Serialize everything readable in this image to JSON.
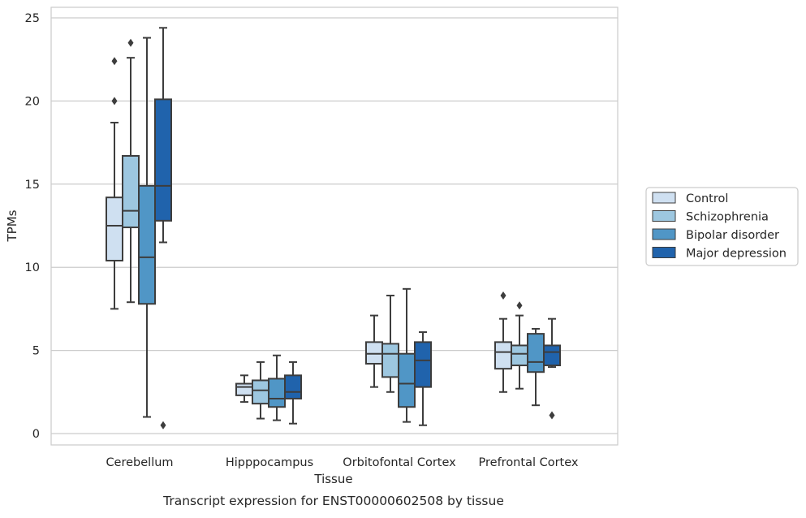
{
  "chart_data": {
    "type": "boxplot",
    "caption": "Transcript expression for ENST00000602508 by tissue",
    "xlabel": "Tissue",
    "ylabel": "TPMs",
    "ylim": [
      -0.7,
      25.7
    ],
    "yticks": [
      0,
      5,
      10,
      15,
      20,
      25
    ],
    "grid": "horizontal",
    "legend_position": "right",
    "categories": [
      "Cerebellum",
      "Hipppocampus",
      "Orbitofontal Cortex",
      "Prefrontal Cortex"
    ],
    "series": [
      {
        "name": "Control",
        "color": "#cfe0f1",
        "boxes": [
          {
            "whislo": 7.5,
            "q1": 10.4,
            "med": 12.5,
            "q3": 14.2,
            "whishi": 18.7,
            "fliers": [
              20.0,
              22.4
            ]
          },
          {
            "whislo": 1.9,
            "q1": 2.3,
            "med": 2.8,
            "q3": 3.0,
            "whishi": 3.5,
            "fliers": []
          },
          {
            "whislo": 2.8,
            "q1": 4.2,
            "med": 4.8,
            "q3": 5.5,
            "whishi": 7.1,
            "fliers": []
          },
          {
            "whislo": 2.5,
            "q1": 3.9,
            "med": 4.9,
            "q3": 5.5,
            "whishi": 6.9,
            "fliers": [
              8.3
            ]
          }
        ]
      },
      {
        "name": "Schizophrenia",
        "color": "#9dc7e0",
        "boxes": [
          {
            "whislo": 7.9,
            "q1": 12.4,
            "med": 13.4,
            "q3": 16.7,
            "whishi": 22.6,
            "fliers": [
              23.5
            ]
          },
          {
            "whislo": 0.9,
            "q1": 1.8,
            "med": 2.6,
            "q3": 3.2,
            "whishi": 4.3,
            "fliers": []
          },
          {
            "whislo": 2.5,
            "q1": 3.4,
            "med": 4.8,
            "q3": 5.4,
            "whishi": 8.3,
            "fliers": []
          },
          {
            "whislo": 2.7,
            "q1": 4.1,
            "med": 4.8,
            "q3": 5.3,
            "whishi": 7.1,
            "fliers": [
              7.7
            ]
          }
        ]
      },
      {
        "name": "Bipolar disorder",
        "color": "#5096c6",
        "boxes": [
          {
            "whislo": 1.0,
            "q1": 7.8,
            "med": 10.6,
            "q3": 14.9,
            "whishi": 23.8,
            "fliers": []
          },
          {
            "whislo": 0.8,
            "q1": 1.6,
            "med": 2.1,
            "q3": 3.3,
            "whishi": 4.7,
            "fliers": []
          },
          {
            "whislo": 0.7,
            "q1": 1.6,
            "med": 3.0,
            "q3": 4.8,
            "whishi": 8.7,
            "fliers": []
          },
          {
            "whislo": 1.7,
            "q1": 3.7,
            "med": 4.3,
            "q3": 6.0,
            "whishi": 6.3,
            "fliers": []
          }
        ]
      },
      {
        "name": "Major depression",
        "color": "#2063ac",
        "boxes": [
          {
            "whislo": 11.5,
            "q1": 12.8,
            "med": 14.9,
            "q3": 20.1,
            "whishi": 24.4,
            "fliers": [
              0.5
            ]
          },
          {
            "whislo": 0.6,
            "q1": 2.1,
            "med": 2.5,
            "q3": 3.5,
            "whishi": 4.3,
            "fliers": []
          },
          {
            "whislo": 0.5,
            "q1": 2.8,
            "med": 4.4,
            "q3": 5.5,
            "whishi": 6.1,
            "fliers": []
          },
          {
            "whislo": 4.0,
            "q1": 4.1,
            "med": 4.9,
            "q3": 5.3,
            "whishi": 6.9,
            "fliers": [
              1.1
            ]
          }
        ]
      }
    ]
  }
}
